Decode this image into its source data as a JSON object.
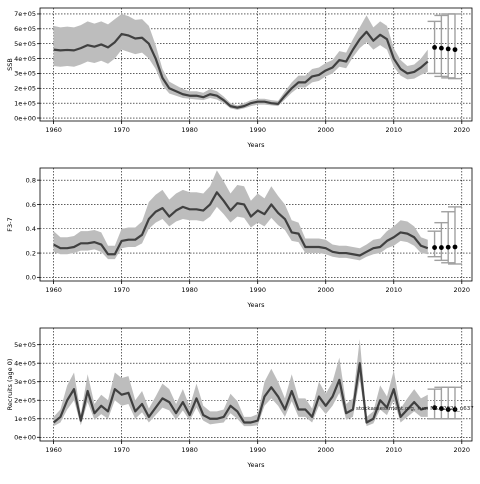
{
  "chart_data": [
    {
      "type": "line",
      "title": "",
      "xlabel": "Years",
      "ylabel": "SSB",
      "xlim": [
        1958,
        2021.5
      ],
      "ylim": [
        -20000,
        740000
      ],
      "xticks": [
        1960,
        1970,
        1980,
        1990,
        2000,
        2010,
        2020
      ],
      "yticks": [
        0,
        100000,
        200000,
        300000,
        400000,
        500000,
        600000,
        700000
      ],
      "ytick_labels": [
        "0e+00",
        "1e+05",
        "2e+05",
        "3e+05",
        "4e+05",
        "5e+05",
        "6e+05",
        "7e+05"
      ],
      "grid": true,
      "band_color": "#bdbdbd",
      "line_color": "#404040",
      "forecast_color": "#a0a0a0",
      "point_color": "#000000",
      "years": [
        1960,
        1961,
        1962,
        1963,
        1964,
        1965,
        1966,
        1967,
        1968,
        1969,
        1970,
        1971,
        1972,
        1973,
        1974,
        1975,
        1976,
        1977,
        1978,
        1979,
        1980,
        1981,
        1982,
        1983,
        1984,
        1985,
        1986,
        1987,
        1988,
        1989,
        1990,
        1991,
        1992,
        1993,
        1994,
        1995,
        1996,
        1997,
        1998,
        1999,
        2000,
        2001,
        2002,
        2003,
        2004,
        2005,
        2006,
        2007,
        2008,
        2009,
        2010,
        2011,
        2012,
        2013,
        2014,
        2015
      ],
      "median": [
        460000,
        455000,
        458000,
        455000,
        470000,
        490000,
        480000,
        495000,
        475000,
        510000,
        565000,
        555000,
        535000,
        540000,
        500000,
        400000,
        270000,
        200000,
        180000,
        160000,
        150000,
        150000,
        140000,
        160000,
        150000,
        120000,
        80000,
        70000,
        80000,
        100000,
        110000,
        110000,
        100000,
        95000,
        150000,
        200000,
        240000,
        240000,
        280000,
        290000,
        320000,
        340000,
        390000,
        380000,
        460000,
        530000,
        580000,
        520000,
        560000,
        530000,
        400000,
        330000,
        300000,
        310000,
        340000,
        380000
      ],
      "lower": [
        350000,
        345000,
        350000,
        345000,
        360000,
        380000,
        370000,
        385000,
        365000,
        400000,
        460000,
        445000,
        430000,
        440000,
        400000,
        330000,
        220000,
        165000,
        150000,
        135000,
        130000,
        125000,
        120000,
        135000,
        125000,
        100000,
        65000,
        55000,
        65000,
        80000,
        90000,
        90000,
        85000,
        80000,
        125000,
        170000,
        205000,
        205000,
        240000,
        250000,
        280000,
        300000,
        345000,
        335000,
        410000,
        470000,
        510000,
        460000,
        490000,
        460000,
        345000,
        285000,
        260000,
        265000,
        290000,
        310000
      ],
      "upper": [
        620000,
        610000,
        615000,
        610000,
        625000,
        650000,
        635000,
        650000,
        630000,
        665000,
        700000,
        685000,
        660000,
        665000,
        620000,
        490000,
        330000,
        245000,
        220000,
        195000,
        180000,
        180000,
        170000,
        195000,
        180000,
        145000,
        100000,
        85000,
        100000,
        120000,
        130000,
        130000,
        120000,
        115000,
        180000,
        240000,
        285000,
        285000,
        330000,
        340000,
        370000,
        390000,
        450000,
        440000,
        530000,
        610000,
        690000,
        610000,
        650000,
        620000,
        470000,
        390000,
        350000,
        360000,
        400000,
        460000
      ],
      "forecast": [
        {
          "x": 2016,
          "median": 475000,
          "lower": 300000,
          "upper": 650000
        },
        {
          "x": 2017,
          "median": 470000,
          "lower": 280000,
          "upper": 690000
        },
        {
          "x": 2018,
          "median": 465000,
          "lower": 270000,
          "upper": 700000
        },
        {
          "x": 2019,
          "median": 460000,
          "lower": 265000,
          "upper": 700000
        }
      ]
    },
    {
      "type": "line",
      "title": "",
      "xlabel": "Years",
      "ylabel": "F3-7",
      "xlim": [
        1958,
        2021.5
      ],
      "ylim": [
        -0.03,
        0.9
      ],
      "xticks": [
        1960,
        1970,
        1980,
        1990,
        2000,
        2010,
        2020
      ],
      "yticks": [
        0.0,
        0.2,
        0.4,
        0.6,
        0.8
      ],
      "ytick_labels": [
        "0.0",
        "0.2",
        "0.4",
        "0.6",
        "0.8"
      ],
      "grid": true,
      "band_color": "#bdbdbd",
      "line_color": "#404040",
      "forecast_color": "#a0a0a0",
      "point_color": "#000000",
      "years": [
        1960,
        1961,
        1962,
        1963,
        1964,
        1965,
        1966,
        1967,
        1968,
        1969,
        1970,
        1971,
        1972,
        1973,
        1974,
        1975,
        1976,
        1977,
        1978,
        1979,
        1980,
        1981,
        1982,
        1983,
        1984,
        1985,
        1986,
        1987,
        1988,
        1989,
        1990,
        1991,
        1992,
        1993,
        1994,
        1995,
        1996,
        1997,
        1998,
        1999,
        2000,
        2001,
        2002,
        2003,
        2004,
        2005,
        2006,
        2007,
        2008,
        2009,
        2010,
        2011,
        2012,
        2013,
        2014,
        2015
      ],
      "median": [
        0.27,
        0.24,
        0.24,
        0.25,
        0.28,
        0.28,
        0.29,
        0.27,
        0.19,
        0.19,
        0.3,
        0.31,
        0.31,
        0.35,
        0.48,
        0.54,
        0.57,
        0.5,
        0.55,
        0.58,
        0.56,
        0.56,
        0.55,
        0.6,
        0.7,
        0.63,
        0.55,
        0.61,
        0.6,
        0.5,
        0.55,
        0.52,
        0.6,
        0.53,
        0.48,
        0.37,
        0.36,
        0.25,
        0.25,
        0.25,
        0.24,
        0.21,
        0.2,
        0.2,
        0.19,
        0.18,
        0.21,
        0.24,
        0.25,
        0.3,
        0.33,
        0.37,
        0.36,
        0.33,
        0.26,
        0.24
      ],
      "lower": [
        0.21,
        0.19,
        0.19,
        0.2,
        0.22,
        0.22,
        0.23,
        0.21,
        0.15,
        0.15,
        0.24,
        0.25,
        0.25,
        0.28,
        0.4,
        0.45,
        0.48,
        0.42,
        0.46,
        0.48,
        0.47,
        0.47,
        0.46,
        0.5,
        0.58,
        0.52,
        0.45,
        0.5,
        0.49,
        0.41,
        0.45,
        0.42,
        0.49,
        0.43,
        0.39,
        0.3,
        0.29,
        0.2,
        0.2,
        0.2,
        0.19,
        0.17,
        0.16,
        0.16,
        0.15,
        0.14,
        0.17,
        0.19,
        0.2,
        0.24,
        0.26,
        0.3,
        0.29,
        0.26,
        0.2,
        0.19
      ],
      "upper": [
        0.38,
        0.33,
        0.33,
        0.34,
        0.38,
        0.38,
        0.39,
        0.37,
        0.26,
        0.26,
        0.4,
        0.41,
        0.41,
        0.46,
        0.62,
        0.68,
        0.72,
        0.64,
        0.69,
        0.72,
        0.7,
        0.7,
        0.69,
        0.75,
        0.88,
        0.79,
        0.69,
        0.76,
        0.75,
        0.63,
        0.69,
        0.65,
        0.75,
        0.67,
        0.6,
        0.47,
        0.45,
        0.32,
        0.32,
        0.32,
        0.31,
        0.27,
        0.26,
        0.26,
        0.25,
        0.24,
        0.27,
        0.31,
        0.32,
        0.38,
        0.42,
        0.47,
        0.46,
        0.42,
        0.33,
        0.31
      ],
      "forecast": [
        {
          "x": 2016,
          "median": 0.245,
          "lower": 0.17,
          "upper": 0.38
        },
        {
          "x": 2017,
          "median": 0.245,
          "lower": 0.14,
          "upper": 0.45
        },
        {
          "x": 2018,
          "median": 0.248,
          "lower": 0.12,
          "upper": 0.54
        },
        {
          "x": 2019,
          "median": 0.25,
          "lower": 0.11,
          "upper": 0.58
        }
      ]
    },
    {
      "type": "line",
      "title": "",
      "xlabel": "Years",
      "ylabel": "Recruits (age 0)",
      "xlim": [
        1958,
        2021.5
      ],
      "ylim": [
        -20000,
        590000
      ],
      "xticks": [
        1960,
        1970,
        1980,
        1990,
        2000,
        2010,
        2020
      ],
      "yticks": [
        0,
        100000,
        200000,
        300000,
        400000,
        500000
      ],
      "ytick_labels": [
        "0e+00",
        "1e+05",
        "2e+05",
        "3e+05",
        "4e+05",
        "5e+05"
      ],
      "grid": true,
      "band_color": "#bdbdbd",
      "line_color": "#404040",
      "forecast_color": "#a0a0a0",
      "point_color": "#000000",
      "note": "stockassessment.org, run: NS...2021_n637",
      "years": [
        1960,
        1961,
        1962,
        1963,
        1964,
        1965,
        1966,
        1967,
        1968,
        1969,
        1970,
        1971,
        1972,
        1973,
        1974,
        1975,
        1976,
        1977,
        1978,
        1979,
        1980,
        1981,
        1982,
        1983,
        1984,
        1985,
        1986,
        1987,
        1988,
        1989,
        1990,
        1991,
        1992,
        1993,
        1994,
        1995,
        1996,
        1997,
        1998,
        1999,
        2000,
        2001,
        2002,
        2003,
        2004,
        2005,
        2006,
        2007,
        2008,
        2009,
        2010,
        2011,
        2012,
        2013,
        2014,
        2015
      ],
      "median": [
        80000,
        110000,
        200000,
        260000,
        90000,
        250000,
        130000,
        170000,
        140000,
        260000,
        230000,
        240000,
        140000,
        180000,
        110000,
        160000,
        210000,
        190000,
        130000,
        190000,
        120000,
        210000,
        120000,
        100000,
        100000,
        110000,
        170000,
        140000,
        80000,
        80000,
        90000,
        220000,
        270000,
        220000,
        150000,
        250000,
        150000,
        150000,
        110000,
        220000,
        170000,
        220000,
        310000,
        130000,
        150000,
        400000,
        80000,
        100000,
        200000,
        160000,
        260000,
        110000,
        150000,
        190000,
        150000,
        160000
      ],
      "lower": [
        60000,
        80000,
        150000,
        200000,
        65000,
        190000,
        95000,
        125000,
        100000,
        200000,
        170000,
        180000,
        100000,
        135000,
        80000,
        120000,
        160000,
        145000,
        95000,
        145000,
        90000,
        160000,
        90000,
        70000,
        75000,
        80000,
        130000,
        100000,
        60000,
        60000,
        65000,
        170000,
        210000,
        170000,
        110000,
        195000,
        110000,
        110000,
        80000,
        170000,
        125000,
        170000,
        240000,
        95000,
        110000,
        310000,
        60000,
        75000,
        150000,
        120000,
        200000,
        80000,
        110000,
        140000,
        110000,
        110000
      ],
      "upper": [
        110000,
        150000,
        280000,
        350000,
        125000,
        340000,
        180000,
        230000,
        200000,
        350000,
        320000,
        330000,
        200000,
        250000,
        155000,
        220000,
        290000,
        260000,
        180000,
        260000,
        165000,
        290000,
        170000,
        140000,
        140000,
        150000,
        235000,
        195000,
        110000,
        110000,
        125000,
        300000,
        370000,
        300000,
        210000,
        340000,
        210000,
        210000,
        155000,
        300000,
        235000,
        300000,
        430000,
        180000,
        210000,
        530000,
        110000,
        140000,
        280000,
        220000,
        360000,
        155000,
        210000,
        260000,
        210000,
        230000
      ],
      "forecast": [
        {
          "x": 2016,
          "median": 160000,
          "lower": 100000,
          "upper": 260000
        },
        {
          "x": 2017,
          "median": 155000,
          "lower": 100000,
          "upper": 270000
        },
        {
          "x": 2018,
          "median": 150000,
          "lower": 100000,
          "upper": 270000
        },
        {
          "x": 2019,
          "median": 150000,
          "lower": 100000,
          "upper": 270000
        }
      ]
    }
  ]
}
